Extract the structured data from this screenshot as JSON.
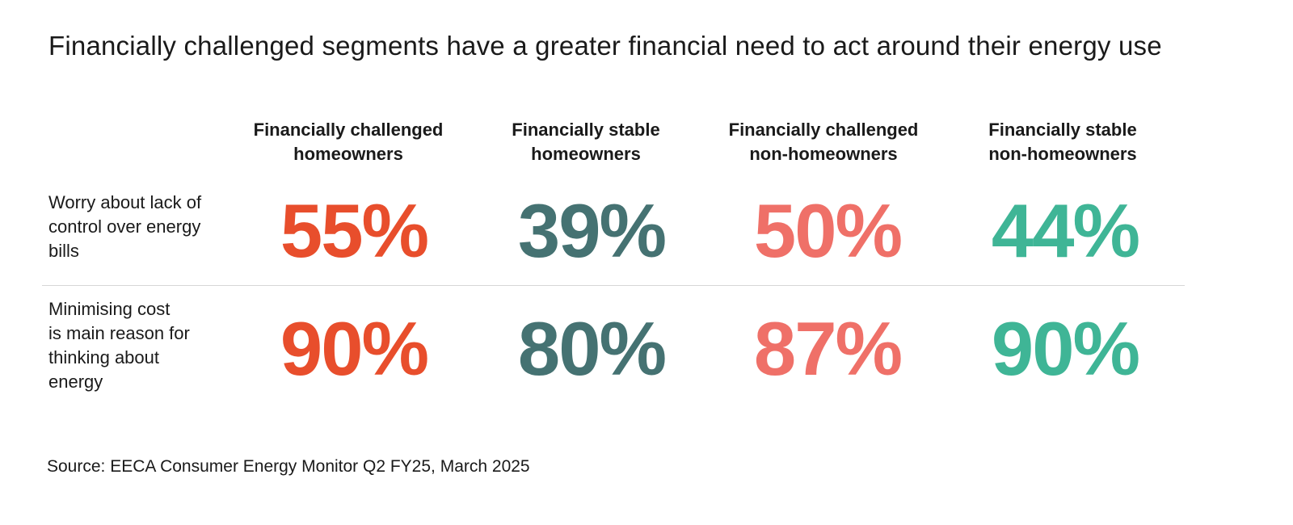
{
  "chart_data": {
    "type": "table",
    "title": "Financially challenged segments have a greater financial need to act around their energy use",
    "columns": [
      {
        "line1": "Financially challenged",
        "line2": "homeowners",
        "color": "#e84e2c"
      },
      {
        "line1": "Financially stable",
        "line2": "homeowners",
        "color": "#457272"
      },
      {
        "line1": "Financially challenged",
        "line2": "non-homeowners",
        "color": "#ef7068"
      },
      {
        "line1": "Financially stable",
        "line2": "non-homeowners",
        "color": "#3fb596"
      }
    ],
    "rows": [
      {
        "label_lines": [
          "Worry about lack of",
          "control over energy",
          "bills"
        ],
        "values": [
          55,
          39,
          50,
          44
        ],
        "display": [
          "55%",
          "39%",
          "50%",
          "44%"
        ]
      },
      {
        "label_lines": [
          "Minimising cost",
          "is main reason for",
          "thinking about",
          "energy"
        ],
        "values": [
          90,
          80,
          87,
          90
        ],
        "display": [
          "90%",
          "80%",
          "87%",
          "90%"
        ]
      }
    ],
    "unit": "%"
  },
  "source": "Source: EECA Consumer Energy Monitor Q2 FY25, March 2025"
}
